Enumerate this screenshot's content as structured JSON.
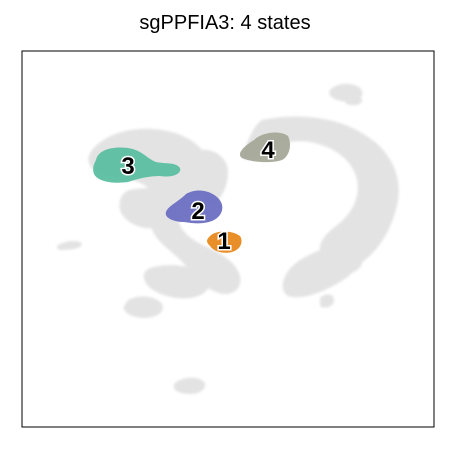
{
  "chart_data": {
    "type": "scatter",
    "title": "sgPPFIA3: 4 states",
    "xlabel": "",
    "ylabel": "",
    "grid": false,
    "background_color": "#e3e3e3",
    "states": [
      {
        "label": "1",
        "color": "#e8891e"
      },
      {
        "label": "2",
        "color": "#6a6fc1"
      },
      {
        "label": "3",
        "color": "#5bbfa1"
      },
      {
        "label": "4",
        "color": "#a5a898"
      }
    ]
  }
}
